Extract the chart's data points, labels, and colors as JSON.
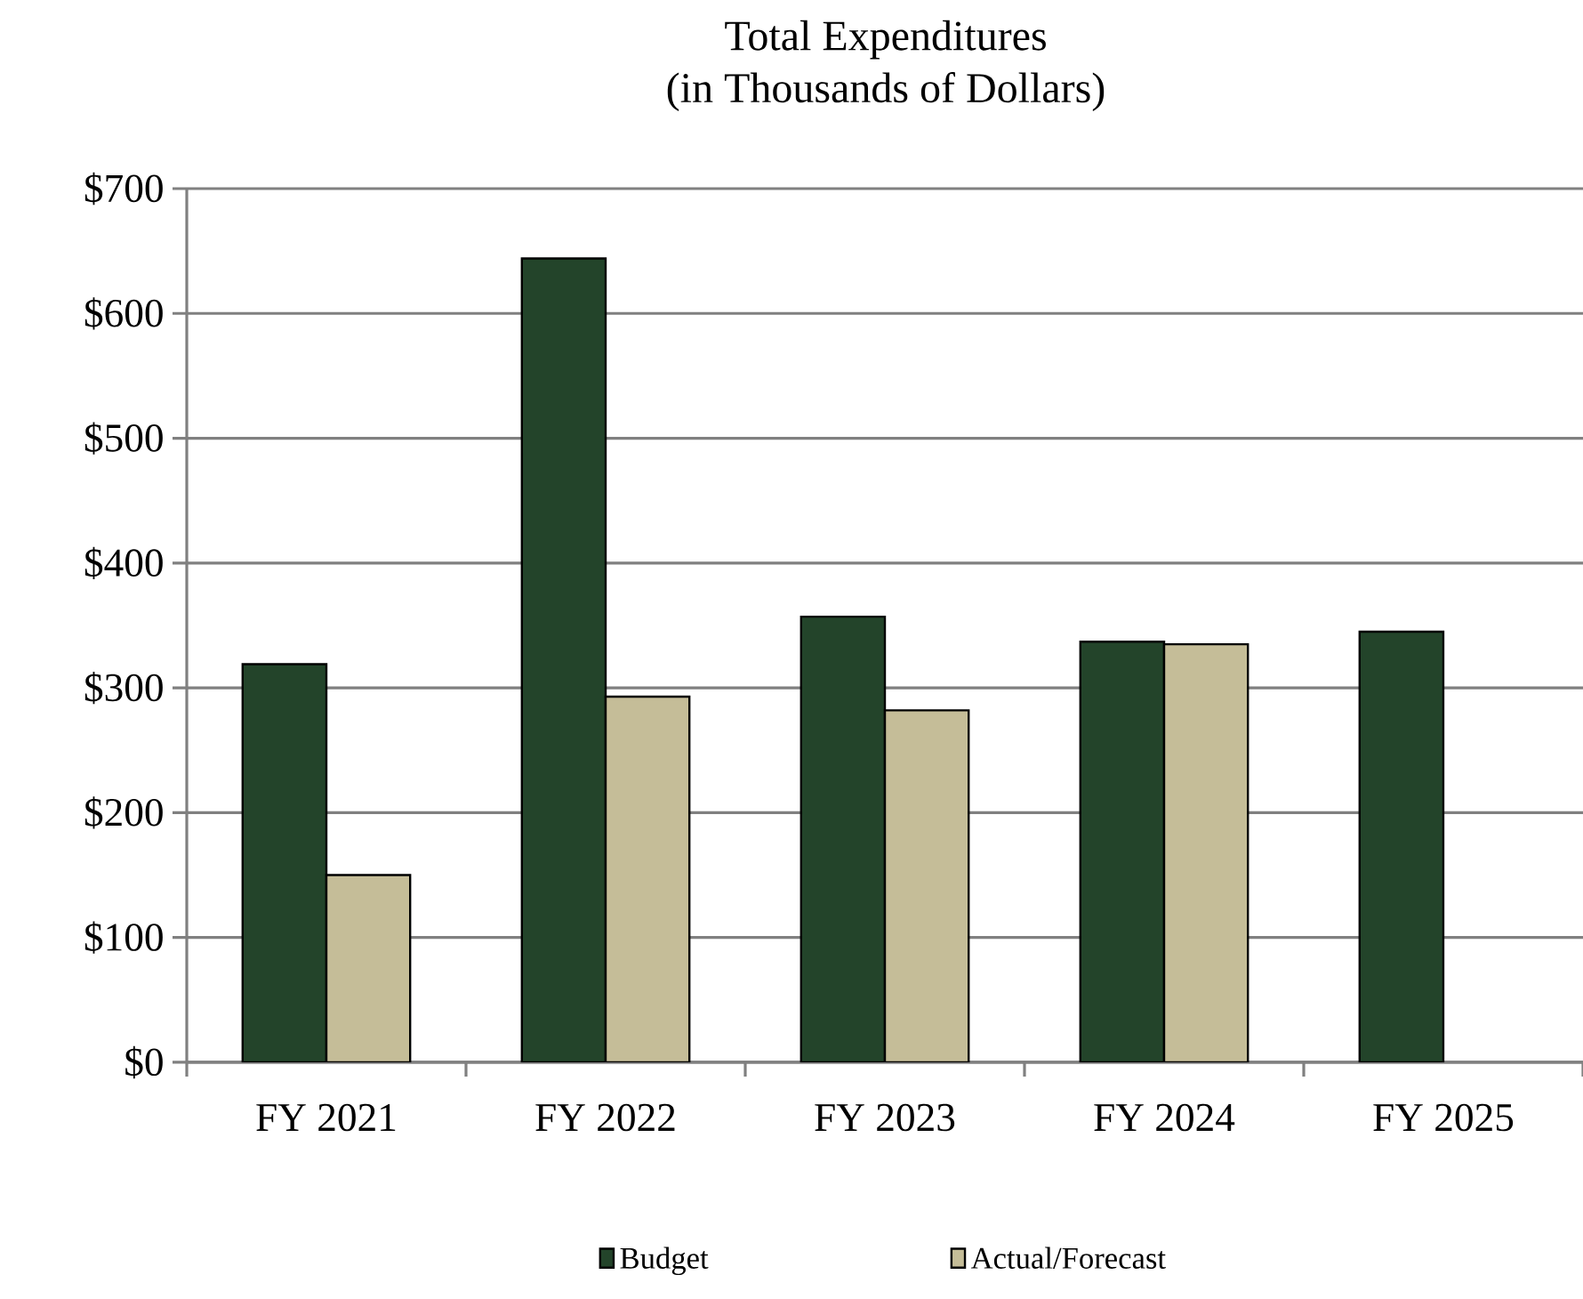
{
  "chart_data": {
    "type": "bar",
    "title": "Total Expenditures",
    "subtitle": "(in Thousands of Dollars)",
    "categories": [
      "FY 2021",
      "FY 2022",
      "FY 2023",
      "FY 2024",
      "FY 2025"
    ],
    "series": [
      {
        "name": "Budget",
        "color": "#23442a",
        "values": [
          319,
          644,
          357,
          337,
          345
        ]
      },
      {
        "name": "Actual/Forecast",
        "color": "#c5bd98",
        "values": [
          150,
          293,
          282,
          335,
          null
        ]
      }
    ],
    "ylim": [
      0,
      700
    ],
    "yticks": [
      {
        "value": 0,
        "label": "$0"
      },
      {
        "value": 100,
        "label": "$100"
      },
      {
        "value": 200,
        "label": "$200"
      },
      {
        "value": 300,
        "label": "$300"
      },
      {
        "value": 400,
        "label": "$400"
      },
      {
        "value": 500,
        "label": "$500"
      },
      {
        "value": 600,
        "label": "$600"
      },
      {
        "value": 700,
        "label": "$700"
      }
    ],
    "grid": "y",
    "legend": "bottom"
  }
}
